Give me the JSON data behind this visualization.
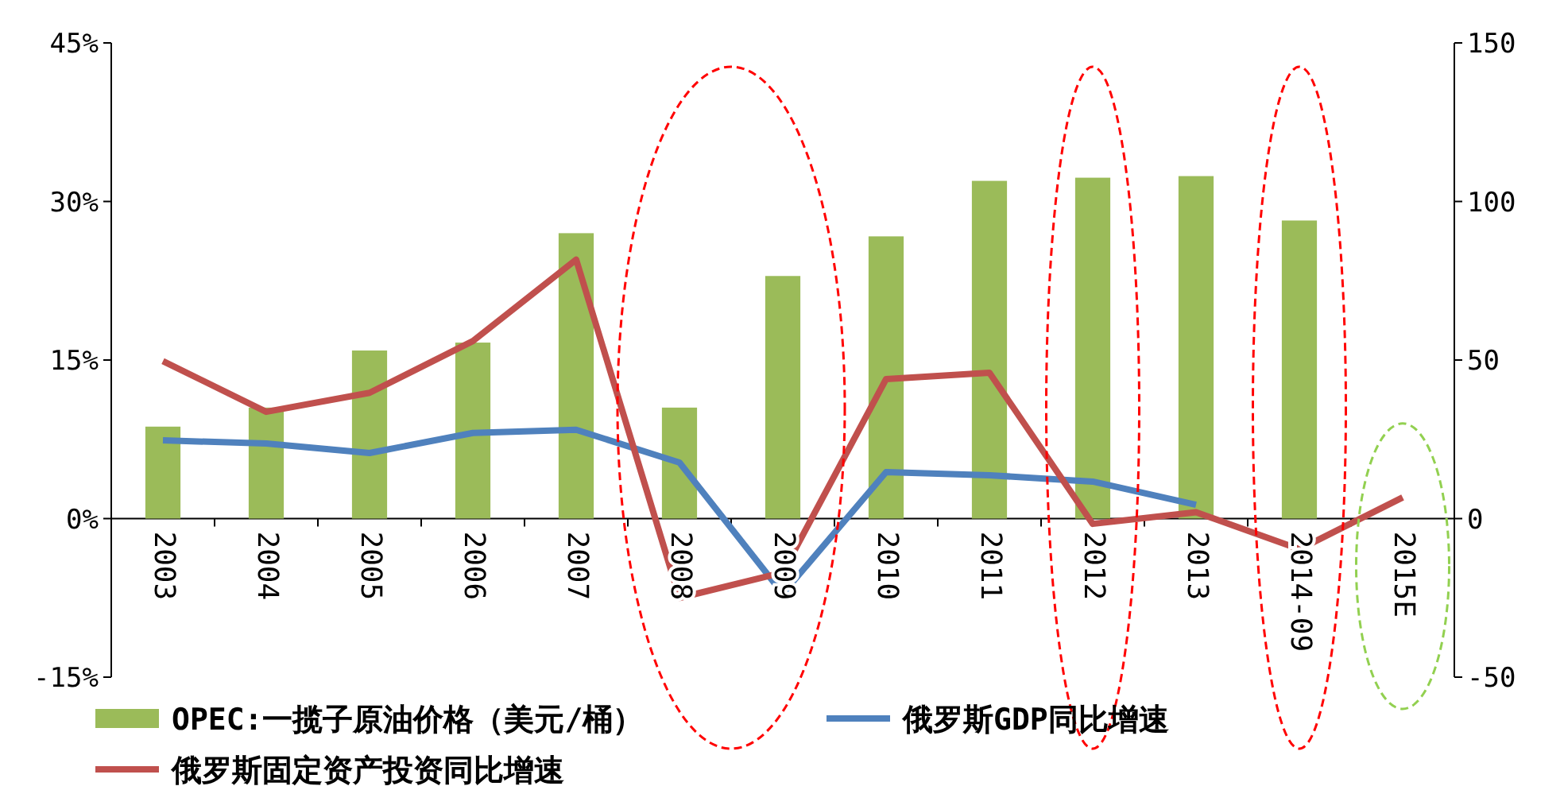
{
  "chart_data": {
    "type": "bar",
    "categories": [
      "2003",
      "2004",
      "2005",
      "2006",
      "2007",
      "2008",
      "2009",
      "2010",
      "2011",
      "2012",
      "2013",
      "2014-09",
      "2015E"
    ],
    "series": [
      {
        "name": "OPEC:一揽子原油价格（美元/桶）",
        "axis": "y2",
        "color": "#9bbb59",
        "values": [
          29,
          35,
          53,
          55.5,
          90,
          35,
          76.5,
          89,
          106.5,
          107.5,
          108,
          94,
          null
        ]
      },
      {
        "name": "俄罗斯GDP同比增速",
        "type": "line",
        "color": "#4f81bd",
        "values": [
          7.4,
          7.1,
          6.2,
          8.1,
          8.4,
          5.3,
          -7.1,
          4.4,
          4.1,
          3.5,
          1.3,
          null,
          null
        ]
      },
      {
        "name": "俄罗斯固定资产投资同比增速",
        "type": "line",
        "color": "#c0504d",
        "values": [
          14.9,
          10.1,
          11.9,
          16.8,
          24.5,
          -7.5,
          -5.1,
          13.2,
          13.8,
          -0.5,
          0.6,
          -2.9,
          2.0
        ]
      }
    ],
    "ylim": [
      -15,
      45
    ],
    "yticks": [
      {
        "value": -15,
        "label": "-15%"
      },
      {
        "value": 0,
        "label": "0%"
      },
      {
        "value": 15,
        "label": "15%"
      },
      {
        "value": 30,
        "label": "30%"
      },
      {
        "value": 45,
        "label": "45%"
      }
    ],
    "y2lim": [
      -50,
      150
    ],
    "y2ticks": [
      -50,
      0,
      50,
      100,
      150
    ],
    "grid": false,
    "legend": "bottom",
    "marker": "none",
    "line_style": "solid"
  }
}
